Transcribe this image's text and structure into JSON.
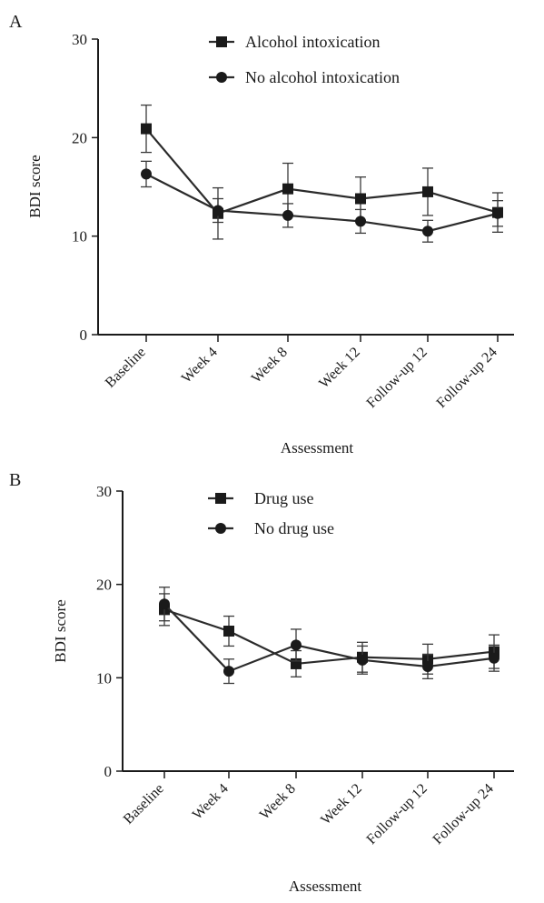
{
  "chart_data": [
    {
      "type": "line",
      "panel_label": "A",
      "xlabel": "Assessment",
      "ylabel": "BDI score",
      "ylim": [
        0,
        30
      ],
      "yticks": [
        0,
        10,
        20,
        30
      ],
      "categories": [
        "Baseline",
        "Week 4",
        "Week 8",
        "Week 12",
        "Follow-up 12",
        "Follow-up 24"
      ],
      "legend_position": "top-right",
      "series": [
        {
          "name": "Alcohol intoxication",
          "marker": "square",
          "values": [
            20.9,
            12.3,
            14.8,
            13.8,
            14.5,
            12.4
          ],
          "error": [
            2.4,
            2.6,
            2.6,
            2.2,
            2.4,
            2.0
          ]
        },
        {
          "name": "No alcohol intoxication",
          "marker": "circle",
          "values": [
            16.3,
            12.6,
            12.1,
            11.5,
            10.5,
            12.3
          ],
          "error": [
            1.3,
            1.2,
            1.2,
            1.2,
            1.1,
            1.3
          ]
        }
      ]
    },
    {
      "type": "line",
      "panel_label": "B",
      "xlabel": "Assessment",
      "ylabel": "BDI score",
      "ylim": [
        0,
        30
      ],
      "yticks": [
        0,
        10,
        20,
        30
      ],
      "categories": [
        "Baseline",
        "Week 4",
        "Week 8",
        "Week 12",
        "Follow-up 12",
        "Follow-up 24"
      ],
      "legend_position": "top-right",
      "series": [
        {
          "name": "Drug use",
          "marker": "square",
          "values": [
            17.3,
            15.0,
            11.5,
            12.2,
            12.0,
            12.8
          ],
          "error": [
            1.7,
            1.6,
            1.4,
            1.6,
            1.6,
            1.8
          ]
        },
        {
          "name": "No drug use",
          "marker": "circle",
          "values": [
            17.9,
            10.7,
            13.5,
            11.9,
            11.2,
            12.1
          ],
          "error": [
            1.8,
            1.3,
            1.7,
            1.5,
            1.3,
            1.4
          ]
        }
      ]
    }
  ]
}
